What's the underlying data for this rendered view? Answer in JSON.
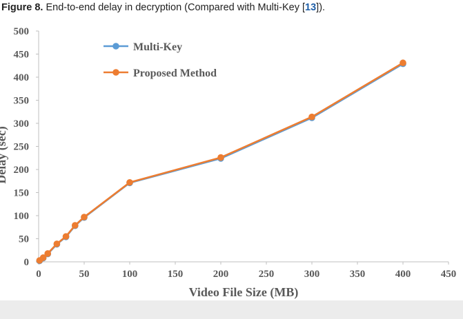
{
  "caption": {
    "figure_label": "Figure 8.",
    "text_before_ref": " End-to-end delay in decryption (Compared with Multi-Key [",
    "ref": "13",
    "text_after_ref": "])."
  },
  "chart_data": {
    "type": "line",
    "title": "",
    "xlabel": "Video File Size (MB)",
    "ylabel": "Delay (sec)",
    "xlim": [
      0,
      450
    ],
    "ylim": [
      0,
      500
    ],
    "xticks": [
      0,
      50,
      100,
      150,
      200,
      250,
      300,
      350,
      400,
      450
    ],
    "yticks": [
      0,
      50,
      100,
      150,
      200,
      250,
      300,
      350,
      400,
      450,
      500
    ],
    "grid": false,
    "legend_position": "top-left",
    "series": [
      {
        "name": "Multi-Key",
        "color": "#5b9bd5",
        "points": [
          [
            1,
            2
          ],
          [
            5,
            8
          ],
          [
            10,
            17
          ],
          [
            20,
            38
          ],
          [
            30,
            54
          ],
          [
            40,
            78
          ],
          [
            50,
            96
          ],
          [
            100,
            171
          ],
          [
            200,
            224
          ],
          [
            300,
            312
          ],
          [
            400,
            429
          ]
        ]
      },
      {
        "name": "Proposed Method",
        "color": "#ed7d31",
        "points": [
          [
            1,
            3
          ],
          [
            5,
            9
          ],
          [
            10,
            18
          ],
          [
            20,
            39
          ],
          [
            30,
            55
          ],
          [
            40,
            79
          ],
          [
            50,
            97
          ],
          [
            100,
            172
          ],
          [
            200,
            226
          ],
          [
            300,
            314
          ],
          [
            400,
            431
          ]
        ]
      }
    ]
  }
}
